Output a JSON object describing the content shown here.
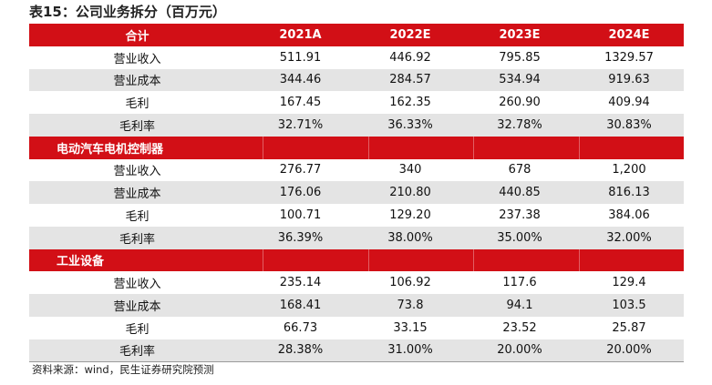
{
  "title": "表15：公司业务拆分（百万元）",
  "header": [
    "合计",
    "2021A",
    "2022E",
    "2023E",
    "2024E"
  ],
  "totals": [
    [
      "营业收入",
      "511.91",
      "446.92",
      "795.85",
      "1329.57"
    ],
    [
      "营业成本",
      "344.46",
      "284.57",
      "534.94",
      "919.63"
    ],
    [
      "毛利",
      "167.45",
      "162.35",
      "260.90",
      "409.94"
    ],
    [
      "毛利率",
      "32.71%",
      "36.33%",
      "32.78%",
      "30.83%"
    ]
  ],
  "section1": {
    "name": "电动汽车电机控制器",
    "rows": [
      [
        "营业收入",
        "276.77",
        "340",
        "678",
        "1,200"
      ],
      [
        "营业成本",
        "176.06",
        "210.80",
        "440.85",
        "816.13"
      ],
      [
        "毛利",
        "100.71",
        "129.20",
        "237.38",
        "384.06"
      ],
      [
        "毛利率",
        "36.39%",
        "38.00%",
        "35.00%",
        "32.00%"
      ]
    ]
  },
  "section2": {
    "name": "工业设备",
    "rows": [
      [
        "营业收入",
        "235.14",
        "106.92",
        "117.6",
        "129.4"
      ],
      [
        "营业成本",
        "168.41",
        "73.8",
        "94.1",
        "103.5"
      ],
      [
        "毛利",
        "66.73",
        "33.15",
        "23.52",
        "25.87"
      ],
      [
        "毛利率",
        "28.38%",
        "31.00%",
        "20.00%",
        "20.00%"
      ]
    ]
  },
  "source": "资料来源：wind，民生证券研究院预测"
}
